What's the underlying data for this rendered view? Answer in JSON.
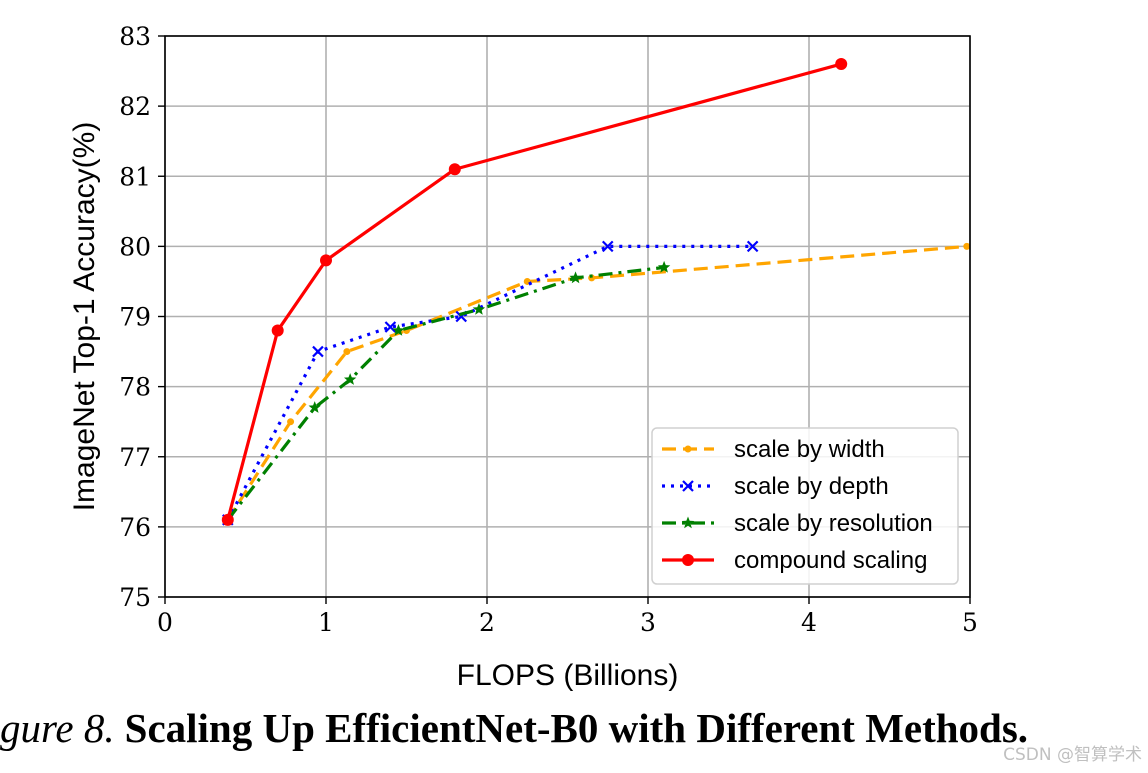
{
  "chart_data": {
    "type": "line",
    "xlabel": "FLOPS (Billions)",
    "ylabel": "ImageNet Top-1 Accuracy(%)",
    "xlim": [
      0,
      5
    ],
    "ylim": [
      75,
      83
    ],
    "xticks": [
      0,
      1,
      2,
      3,
      4,
      5
    ],
    "yticks": [
      75,
      76,
      77,
      78,
      79,
      80,
      81,
      82,
      83
    ],
    "grid": true,
    "legend_position": "lower-right",
    "series": [
      {
        "name": "scale by width",
        "color": "#FFA500",
        "line": "dashed",
        "marker": "dot",
        "x": [
          0.39,
          0.78,
          1.13,
          1.5,
          2.25,
          2.65,
          4.98
        ],
        "y": [
          76.1,
          77.5,
          78.5,
          78.8,
          79.5,
          79.55,
          80.0
        ]
      },
      {
        "name": "scale by depth",
        "color": "#0000FF",
        "line": "dotted",
        "marker": "x",
        "x": [
          0.39,
          0.95,
          1.4,
          1.84,
          2.75,
          3.65
        ],
        "y": [
          76.1,
          78.5,
          78.85,
          79.0,
          80.0,
          80.0
        ]
      },
      {
        "name": "scale by resolution",
        "color": "#008000",
        "line": "dashdot",
        "marker": "star",
        "x": [
          0.39,
          0.93,
          1.15,
          1.45,
          1.95,
          2.55,
          3.1
        ],
        "y": [
          76.1,
          77.7,
          78.1,
          78.8,
          79.1,
          79.55,
          79.7
        ]
      },
      {
        "name": "compound scaling",
        "color": "#FF0000",
        "line": "solid",
        "marker": "circle",
        "x": [
          0.39,
          0.7,
          1.0,
          1.8,
          4.2
        ],
        "y": [
          76.1,
          78.8,
          79.8,
          81.1,
          82.6
        ]
      }
    ]
  },
  "caption": {
    "prefix": "gure 8.",
    "title": "Scaling Up EfficientNet-B0 with Different Methods."
  },
  "watermark": "CSDN @智算学术"
}
